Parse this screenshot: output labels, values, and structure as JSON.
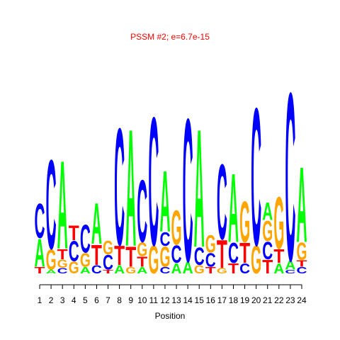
{
  "chart_data": {
    "type": "logo",
    "title": "PSSM #2; e=6.7e-15",
    "xlabel": "Position",
    "categories": [
      "1",
      "2",
      "3",
      "4",
      "5",
      "6",
      "7",
      "8",
      "9",
      "10",
      "11",
      "12",
      "13",
      "14",
      "15",
      "16",
      "17",
      "18",
      "19",
      "20",
      "21",
      "22",
      "23",
      "24"
    ],
    "ylim": [
      0,
      2
    ],
    "colors": {
      "A": "#00ff00",
      "C": "#0000ff",
      "G": "#ffa500",
      "T": "#ff0000"
    },
    "stacks": [
      [
        {
          "letter": "T",
          "value": 0.07
        },
        {
          "letter": "A",
          "value": 0.3
        },
        {
          "letter": "C",
          "value": 0.37
        }
      ],
      [
        {
          "letter": "A",
          "value": 0.04
        },
        {
          "letter": "G",
          "value": 0.22
        },
        {
          "letter": "C",
          "value": 0.96
        }
      ],
      [
        {
          "letter": "C",
          "value": 0.06
        },
        {
          "letter": "G",
          "value": 0.09
        },
        {
          "letter": "T",
          "value": 0.11
        },
        {
          "letter": "A",
          "value": 0.95
        }
      ],
      [
        {
          "letter": "G",
          "value": 0.13
        },
        {
          "letter": "C",
          "value": 0.22
        },
        {
          "letter": "T",
          "value": 0.16
        }
      ],
      [
        {
          "letter": "A",
          "value": 0.07
        },
        {
          "letter": "G",
          "value": 0.15
        },
        {
          "letter": "C",
          "value": 0.3
        }
      ],
      [
        {
          "letter": "C",
          "value": 0.09
        },
        {
          "letter": "T",
          "value": 0.22
        },
        {
          "letter": "A",
          "value": 0.44
        }
      ],
      [
        {
          "letter": "T",
          "value": 0.04
        },
        {
          "letter": "C",
          "value": 0.16
        },
        {
          "letter": "G",
          "value": 0.15
        }
      ],
      [
        {
          "letter": "A",
          "value": 0.09
        },
        {
          "letter": "T",
          "value": 0.21
        },
        {
          "letter": "C",
          "value": 1.26
        }
      ],
      [
        {
          "letter": "G",
          "value": 0.07
        },
        {
          "letter": "T",
          "value": 0.22
        },
        {
          "letter": "A",
          "value": 1.26
        }
      ],
      [
        {
          "letter": "A",
          "value": 0.07
        },
        {
          "letter": "T",
          "value": 0.11
        },
        {
          "letter": "G",
          "value": 0.15
        },
        {
          "letter": "C",
          "value": 0.67
        }
      ],
      [
        {
          "letter": "G",
          "value": 0.3
        },
        {
          "letter": "C",
          "value": 1.38
        }
      ],
      [
        {
          "letter": "C",
          "value": 0.07
        },
        {
          "letter": "G",
          "value": 0.22
        },
        {
          "letter": "C",
          "value": 0.15
        },
        {
          "letter": "A",
          "value": 0.66
        }
      ],
      [
        {
          "letter": "A",
          "value": 0.11
        },
        {
          "letter": "C",
          "value": 0.19
        },
        {
          "letter": "G",
          "value": 0.37
        }
      ],
      [
        {
          "letter": "A",
          "value": 0.13
        },
        {
          "letter": "C",
          "value": 1.54
        }
      ],
      [
        {
          "letter": "G",
          "value": 0.09
        },
        {
          "letter": "C",
          "value": 0.19
        },
        {
          "letter": "A",
          "value": 1.27
        }
      ],
      [
        {
          "letter": "T",
          "value": 0.07
        },
        {
          "letter": "C",
          "value": 0.15
        },
        {
          "letter": "G",
          "value": 0.19
        }
      ],
      [
        {
          "letter": "G",
          "value": 0.06
        },
        {
          "letter": "T",
          "value": 0.3
        },
        {
          "letter": "C",
          "value": 0.81
        }
      ],
      [
        {
          "letter": "T",
          "value": 0.11
        },
        {
          "letter": "C",
          "value": 0.22
        },
        {
          "letter": "A",
          "value": 0.74
        }
      ],
      [
        {
          "letter": "C",
          "value": 0.11
        },
        {
          "letter": "T",
          "value": 0.22
        },
        {
          "letter": "G",
          "value": 0.44
        }
      ],
      [
        {
          "letter": "G",
          "value": 0.3
        },
        {
          "letter": "C",
          "value": 1.48
        }
      ],
      [
        {
          "letter": "T",
          "value": 0.15
        },
        {
          "letter": "C",
          "value": 0.19
        },
        {
          "letter": "G",
          "value": 0.22
        },
        {
          "letter": "A",
          "value": 0.19
        }
      ],
      [
        {
          "letter": "A",
          "value": 0.11
        },
        {
          "letter": "T",
          "value": 0.15
        },
        {
          "letter": "G",
          "value": 0.56
        }
      ],
      [
        {
          "letter": "C",
          "value": 0.04
        },
        {
          "letter": "A",
          "value": 0.1
        },
        {
          "letter": "C",
          "value": 1.81
        }
      ],
      [
        {
          "letter": "C",
          "value": 0.07
        },
        {
          "letter": "T",
          "value": 0.07
        },
        {
          "letter": "G",
          "value": 0.19
        },
        {
          "letter": "A",
          "value": 0.81
        }
      ]
    ]
  }
}
